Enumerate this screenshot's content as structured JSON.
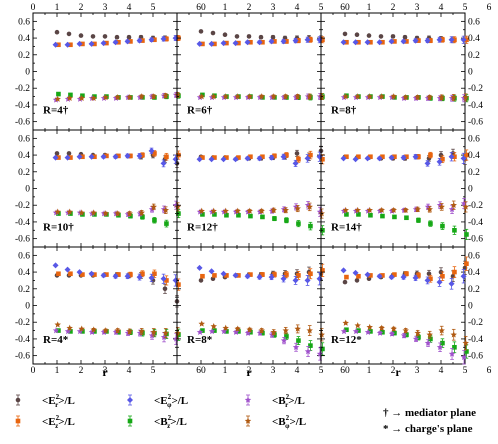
{
  "chart_data": {
    "type": "scatter",
    "grid": "3x3",
    "x_ticks": [
      "0",
      "1",
      "2",
      "3",
      "4",
      "5",
      "6"
    ],
    "x_ticks_top_row": [
      "0",
      "1",
      "2",
      "3",
      "4",
      "5",
      "60",
      "1",
      "2",
      "3",
      "4",
      "5",
      "60",
      "1",
      "2",
      "3",
      "4",
      "5",
      "6"
    ],
    "x_ticks_bottom_row": [
      "0",
      "1",
      "2",
      "3",
      "4",
      "5",
      "60",
      "1",
      "2",
      "3",
      "4",
      "5",
      "60",
      "1",
      "2",
      "3",
      "4",
      "5",
      "6"
    ],
    "y_ticks_left": [
      "0.6",
      "0.4",
      "0.2",
      "0",
      "-0.2",
      "-0.4",
      "-0.6"
    ],
    "y_ticks_right": [
      "0.6",
      "0.4",
      "0.2",
      "0",
      "-0.2",
      "-0.4",
      "-0.6"
    ],
    "xlim": [
      0,
      6
    ],
    "ylim": [
      -0.7,
      0.7
    ],
    "xlabel": "r",
    "colors": {
      "E_r": "#5a4545",
      "E_z": "#e8650f",
      "E_phi": "#5858e6",
      "B_z": "#16a816",
      "B_r": "#a052cc",
      "B_phi": "#b05a12"
    },
    "legend": [
      {
        "key": "E_r",
        "pre": "<E",
        "sup": "2",
        "sub": "r",
        "post": ">/L",
        "marker": "circle",
        "color": "#5a4545"
      },
      {
        "key": "E_z",
        "pre": "<E",
        "sup": "2",
        "sub": "z",
        "post": ">/L",
        "marker": "square",
        "color": "#e8650f"
      },
      {
        "key": "E_phi",
        "pre": "<E",
        "sup": "2",
        "sub": "φ",
        "post": ">/L",
        "marker": "diamond",
        "color": "#5858e6"
      },
      {
        "key": "B_z",
        "pre": "<B",
        "sup": "2",
        "sub": "z",
        "post": ">/L",
        "marker": "square",
        "color": "#16a816"
      },
      {
        "key": "B_r",
        "pre": "<B",
        "sup": "2",
        "sub": "r",
        "post": ">/L",
        "marker": "star",
        "color": "#a052cc"
      },
      {
        "key": "B_phi",
        "pre": "<B",
        "sup": "2",
        "sub": "φ",
        "post": ">/L",
        "marker": "star",
        "color": "#b05a12"
      }
    ],
    "notes": [
      "† → mediator plane",
      "* → charge's plane"
    ],
    "x_positions": [
      1,
      1.5,
      2,
      2.5,
      3,
      3.5,
      4,
      4.5,
      5,
      5.5,
      6
    ],
    "panels": [
      {
        "label": "R=4†",
        "E_r": [
          0.47,
          0.45,
          0.43,
          0.42,
          0.42,
          0.41,
          0.41,
          0.41,
          0.4,
          0.4,
          0.4
        ],
        "E_z": [
          0.32,
          0.32,
          0.33,
          0.33,
          0.34,
          0.35,
          0.36,
          0.37,
          0.38,
          0.39,
          0.4
        ],
        "E_phi": [
          0.32,
          0.32,
          0.33,
          0.33,
          0.34,
          0.35,
          0.36,
          0.37,
          0.38,
          0.39,
          0.4
        ],
        "B_z": [
          -0.27,
          -0.28,
          -0.29,
          -0.3,
          -0.3,
          -0.31,
          -0.31,
          -0.31,
          -0.31,
          -0.3,
          -0.29
        ],
        "B_r": [
          -0.34,
          -0.33,
          -0.33,
          -0.32,
          -0.32,
          -0.32,
          -0.31,
          -0.31,
          -0.3,
          -0.29,
          -0.28
        ],
        "B_phi": [
          -0.33,
          -0.32,
          -0.32,
          -0.32,
          -0.31,
          -0.31,
          -0.31,
          -0.3,
          -0.3,
          -0.29,
          -0.28
        ]
      },
      {
        "label": "R=6†",
        "E_r": [
          0.48,
          0.46,
          0.44,
          0.42,
          0.42,
          0.41,
          0.41,
          0.4,
          0.4,
          0.4,
          0.39
        ],
        "E_z": [
          0.33,
          0.33,
          0.34,
          0.34,
          0.35,
          0.35,
          0.36,
          0.36,
          0.37,
          0.38,
          0.38
        ],
        "E_phi": [
          0.33,
          0.33,
          0.34,
          0.34,
          0.35,
          0.35,
          0.36,
          0.36,
          0.37,
          0.38,
          0.38
        ],
        "B_z": [
          -0.28,
          -0.29,
          -0.3,
          -0.3,
          -0.3,
          -0.31,
          -0.31,
          -0.31,
          -0.31,
          -0.31,
          -0.3
        ],
        "B_r": [
          -0.31,
          -0.31,
          -0.31,
          -0.31,
          -0.31,
          -0.31,
          -0.31,
          -0.31,
          -0.31,
          -0.3,
          -0.3
        ],
        "B_phi": [
          -0.3,
          -0.3,
          -0.3,
          -0.3,
          -0.3,
          -0.3,
          -0.3,
          -0.3,
          -0.3,
          -0.3,
          -0.3
        ]
      },
      {
        "label": "R=8†",
        "E_r": [
          0.45,
          0.44,
          0.43,
          0.42,
          0.42,
          0.41,
          0.4,
          0.4,
          0.39,
          0.38,
          0.38
        ],
        "E_z": [
          0.35,
          0.35,
          0.35,
          0.35,
          0.36,
          0.36,
          0.37,
          0.37,
          0.38,
          0.38,
          0.38
        ],
        "E_phi": [
          0.35,
          0.35,
          0.35,
          0.35,
          0.36,
          0.36,
          0.37,
          0.37,
          0.38,
          0.38,
          0.38
        ],
        "B_z": [
          -0.29,
          -0.3,
          -0.3,
          -0.3,
          -0.31,
          -0.31,
          -0.31,
          -0.32,
          -0.32,
          -0.32,
          -0.32
        ],
        "B_r": [
          -0.31,
          -0.31,
          -0.31,
          -0.31,
          -0.31,
          -0.32,
          -0.32,
          -0.32,
          -0.32,
          -0.32,
          -0.32
        ],
        "B_phi": [
          -0.3,
          -0.3,
          -0.3,
          -0.3,
          -0.3,
          -0.31,
          -0.31,
          -0.31,
          -0.31,
          -0.31,
          -0.31
        ]
      },
      {
        "label": "R=10†",
        "E_r": [
          0.42,
          0.42,
          0.41,
          0.4,
          0.4,
          0.39,
          0.39,
          0.38,
          0.4,
          0.35,
          0.3
        ],
        "E_z": [
          0.37,
          0.37,
          0.38,
          0.38,
          0.39,
          0.39,
          0.39,
          0.4,
          0.42,
          0.38,
          0.4
        ],
        "E_phi": [
          0.37,
          0.37,
          0.38,
          0.38,
          0.38,
          0.38,
          0.39,
          0.39,
          0.45,
          0.3,
          0.35
        ],
        "B_z": [
          -0.3,
          -0.3,
          -0.31,
          -0.31,
          -0.31,
          -0.32,
          -0.33,
          -0.34,
          -0.38,
          -0.42,
          -0.3
        ],
        "B_r": [
          -0.29,
          -0.29,
          -0.29,
          -0.3,
          -0.3,
          -0.3,
          -0.31,
          -0.3,
          -0.25,
          -0.25,
          -0.2
        ],
        "B_phi": [
          -0.28,
          -0.28,
          -0.29,
          -0.29,
          -0.3,
          -0.3,
          -0.3,
          -0.29,
          -0.22,
          -0.26,
          -0.22
        ]
      },
      {
        "label": "R=12†",
        "E_r": [
          0.38,
          0.37,
          0.37,
          0.36,
          0.36,
          0.36,
          0.37,
          0.38,
          0.42,
          0.38,
          0.45
        ],
        "E_z": [
          0.37,
          0.37,
          0.37,
          0.37,
          0.38,
          0.38,
          0.39,
          0.4,
          0.35,
          0.4,
          0.35
        ],
        "E_phi": [
          0.35,
          0.35,
          0.35,
          0.35,
          0.36,
          0.36,
          0.37,
          0.38,
          0.3,
          0.36,
          0.38
        ],
        "B_z": [
          -0.31,
          -0.31,
          -0.32,
          -0.32,
          -0.33,
          -0.34,
          -0.36,
          -0.38,
          -0.42,
          -0.45,
          -0.5
        ],
        "B_r": [
          -0.28,
          -0.28,
          -0.28,
          -0.28,
          -0.28,
          -0.28,
          -0.27,
          -0.25,
          -0.22,
          -0.2,
          -0.28
        ],
        "B_phi": [
          -0.27,
          -0.27,
          -0.27,
          -0.27,
          -0.27,
          -0.27,
          -0.26,
          -0.26,
          -0.24,
          -0.22,
          -0.3
        ]
      },
      {
        "label": "R=14†",
        "E_r": [
          0.38,
          0.37,
          0.37,
          0.36,
          0.36,
          0.36,
          0.38,
          0.36,
          0.4,
          0.42,
          0.35
        ],
        "E_z": [
          0.38,
          0.38,
          0.38,
          0.38,
          0.38,
          0.38,
          0.38,
          0.4,
          0.35,
          0.38,
          0.4
        ],
        "E_phi": [
          0.36,
          0.35,
          0.36,
          0.36,
          0.37,
          0.37,
          0.38,
          0.3,
          0.32,
          0.38,
          0.36
        ],
        "B_z": [
          -0.31,
          -0.31,
          -0.32,
          -0.33,
          -0.34,
          -0.35,
          -0.38,
          -0.42,
          -0.45,
          -0.5,
          -0.55
        ],
        "B_r": [
          -0.27,
          -0.27,
          -0.27,
          -0.27,
          -0.27,
          -0.26,
          -0.25,
          -0.22,
          -0.2,
          -0.25,
          -0.18
        ],
        "B_phi": [
          -0.26,
          -0.26,
          -0.26,
          -0.26,
          -0.26,
          -0.26,
          -0.25,
          -0.25,
          -0.22,
          -0.2,
          -0.22
        ]
      },
      {
        "label": "R=4*",
        "E_r": [
          0.36,
          0.36,
          0.36,
          0.36,
          0.37,
          0.37,
          0.36,
          0.36,
          0.3,
          0.2,
          0.05
        ],
        "E_z": [
          0.38,
          0.38,
          0.37,
          0.37,
          0.37,
          0.37,
          0.37,
          0.38,
          0.38,
          0.3,
          0.25
        ],
        "E_phi": [
          0.48,
          0.43,
          0.4,
          0.38,
          0.36,
          0.35,
          0.35,
          0.34,
          0.33,
          0.32,
          0.3
        ],
        "B_z": [
          -0.3,
          -0.31,
          -0.31,
          -0.31,
          -0.31,
          -0.32,
          -0.32,
          -0.33,
          -0.33,
          -0.34,
          -0.35
        ],
        "B_r": [
          -0.3,
          -0.31,
          -0.31,
          -0.32,
          -0.32,
          -0.32,
          -0.33,
          -0.33,
          -0.36,
          -0.38,
          -0.4
        ],
        "B_phi": [
          -0.23,
          -0.27,
          -0.28,
          -0.29,
          -0.3,
          -0.3,
          -0.31,
          -0.31,
          -0.32,
          -0.33,
          -0.33
        ]
      },
      {
        "label": "R=8*",
        "E_r": [
          0.3,
          0.32,
          0.34,
          0.36,
          0.37,
          0.37,
          0.38,
          0.38,
          0.38,
          0.4,
          0.38
        ],
        "E_z": [
          0.35,
          0.36,
          0.36,
          0.36,
          0.37,
          0.37,
          0.37,
          0.37,
          0.36,
          0.38,
          0.42
        ],
        "E_phi": [
          0.45,
          0.41,
          0.38,
          0.36,
          0.35,
          0.34,
          0.34,
          0.32,
          0.3,
          0.3,
          0.32
        ],
        "B_z": [
          -0.3,
          -0.3,
          -0.31,
          -0.31,
          -0.32,
          -0.33,
          -0.35,
          -0.37,
          -0.42,
          -0.48,
          -0.52
        ],
        "B_r": [
          -0.32,
          -0.31,
          -0.31,
          -0.32,
          -0.33,
          -0.33,
          -0.35,
          -0.42,
          -0.5,
          -0.55,
          -0.58
        ],
        "B_phi": [
          -0.22,
          -0.25,
          -0.27,
          -0.28,
          -0.29,
          -0.3,
          -0.32,
          -0.3,
          -0.28,
          -0.3,
          -0.35
        ]
      },
      {
        "label": "R=12*",
        "E_r": [
          0.28,
          0.3,
          0.32,
          0.34,
          0.36,
          0.38,
          0.38,
          0.38,
          0.4,
          0.35,
          0.45
        ],
        "E_z": [
          0.34,
          0.35,
          0.36,
          0.36,
          0.37,
          0.38,
          0.36,
          0.32,
          0.35,
          0.4,
          0.5
        ],
        "E_phi": [
          0.42,
          0.39,
          0.37,
          0.35,
          0.34,
          0.34,
          0.33,
          0.3,
          0.28,
          0.26,
          0.35
        ],
        "B_z": [
          -0.29,
          -0.3,
          -0.31,
          -0.32,
          -0.33,
          -0.35,
          -0.38,
          -0.4,
          -0.45,
          -0.5,
          -0.55
        ],
        "B_r": [
          -0.31,
          -0.31,
          -0.32,
          -0.33,
          -0.34,
          -0.36,
          -0.4,
          -0.45,
          -0.5,
          -0.58,
          -0.62
        ],
        "B_phi": [
          -0.21,
          -0.24,
          -0.26,
          -0.27,
          -0.28,
          -0.3,
          -0.33,
          -0.35,
          -0.3,
          -0.35,
          -0.45
        ]
      }
    ]
  }
}
